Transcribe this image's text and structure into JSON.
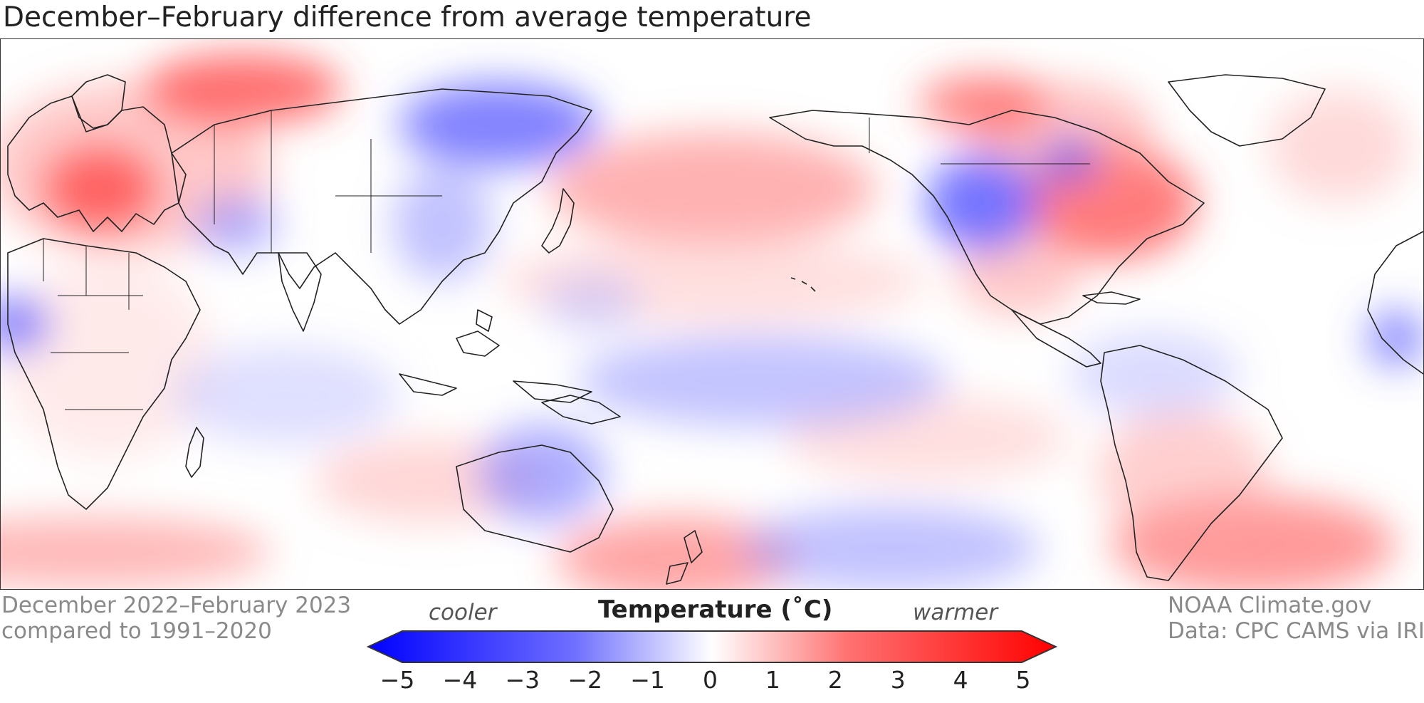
{
  "title": "December–February difference from average temperature",
  "period": {
    "line1": "December 2022–February 2023",
    "line2": "compared to 1991–2020"
  },
  "credit": {
    "line1": "NOAA Climate.gov",
    "line2": "Data: CPC CAMS via IRI"
  },
  "legend": {
    "title": "Temperature (˚C)",
    "cooler_label": "cooler",
    "warmer_label": "warmer",
    "ticks": [
      "−5",
      "−4",
      "−3",
      "−2",
      "−1",
      "0",
      "1",
      "2",
      "3",
      "4",
      "5"
    ],
    "colors": {
      "cold_end": "#0000ff",
      "neutral": "#ffffff",
      "warm_end": "#ff0000",
      "land_outline": "#222222"
    }
  },
  "map": {
    "projection": "equirectangular, Pacific-centered",
    "variable": "temperature anomaly",
    "units": "°C",
    "scale_range": [
      -5,
      5
    ]
  }
}
